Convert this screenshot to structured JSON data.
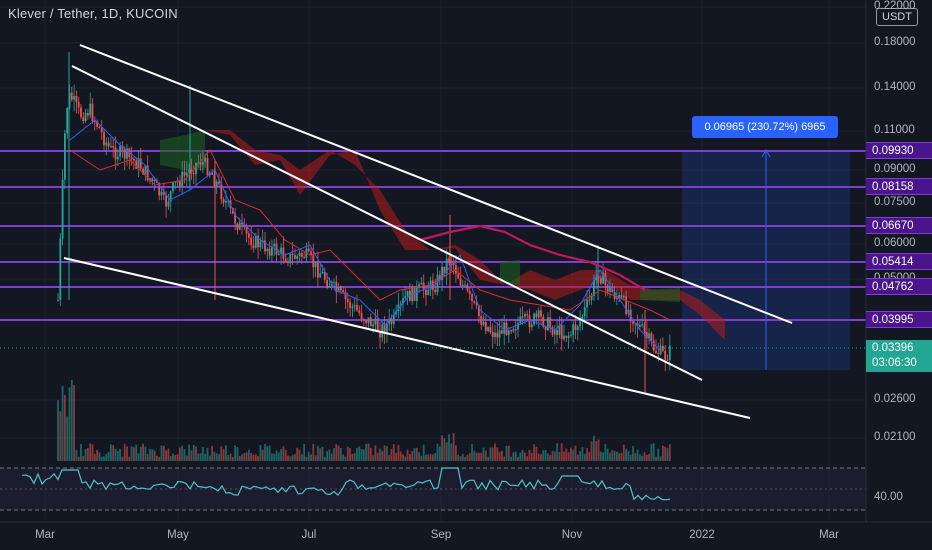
{
  "header": {
    "title": "Klever / Tether, 1D, KUCOIN"
  },
  "currency": "USDT",
  "price_axis": {
    "ticks": [
      "0.22000",
      "0.18000",
      "0.14000",
      "0.11000",
      "0.09000",
      "0.07500",
      "0.06000",
      "0.05000",
      "0.02600",
      "0.02100"
    ],
    "rsi_tick": "40.00"
  },
  "time_axis": {
    "ticks": [
      "Mar",
      "May",
      "Jul",
      "Sep",
      "Nov",
      "2022",
      "Mar"
    ]
  },
  "levels": [
    "0.09930",
    "0.08158",
    "0.06670",
    "0.05414",
    "0.04762",
    "0.03995"
  ],
  "current": {
    "price": "0.03396",
    "countdown": "03:06:30"
  },
  "measure": {
    "label": "0.06965 (230.72%) 6965"
  },
  "colors": {
    "background": "#131722",
    "level_line": "#7e3fd0",
    "level_label": "#4a148c",
    "bull": "#26a69a",
    "bear": "#ef5350",
    "measure": "#2962ff",
    "rsi": "#4fc3c9",
    "trendline": "#ffffff",
    "ma": "#c2185b"
  }
}
